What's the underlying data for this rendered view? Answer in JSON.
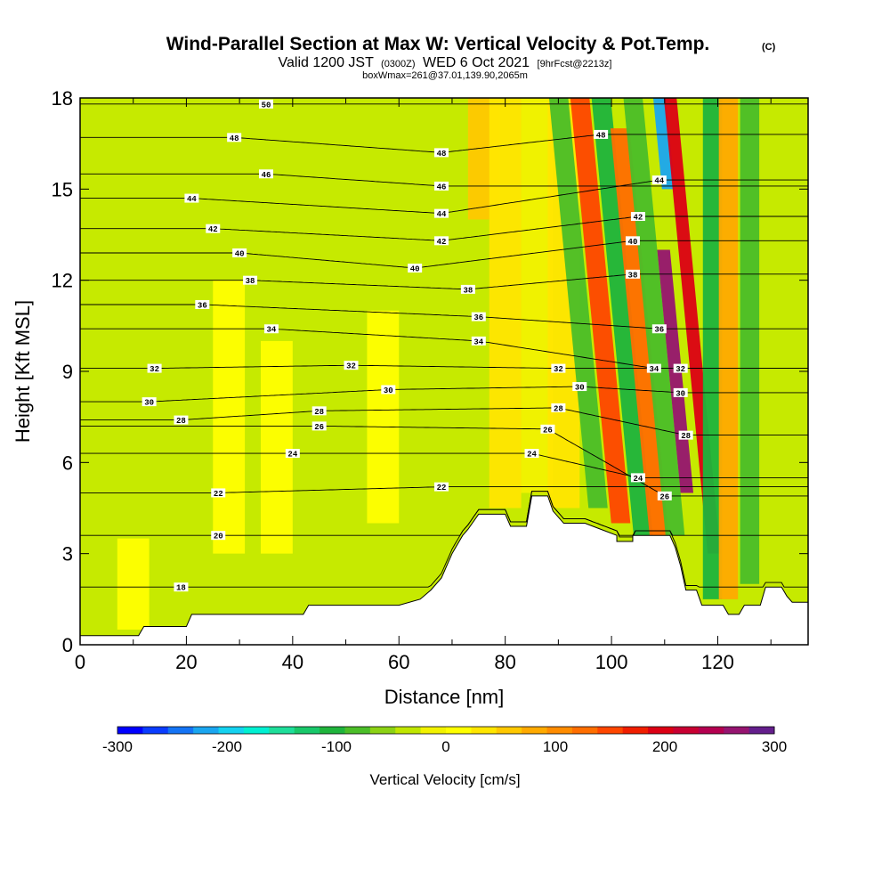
{
  "header": {
    "title": "Wind-Parallel Section at Max W: Vertical Velocity & Pot.Temp.",
    "copyright": "(C)",
    "valid_prefix": "Valid 1200 JST",
    "valid_zulu": "(0300Z)",
    "valid_date": "WED 6 Oct 2021",
    "forecast": "[9hrFcst@2213z]",
    "box_info": "boxWmax=261@37.01,139.90,2065m"
  },
  "chart_data": {
    "type": "heatmap",
    "xlabel": "Distance [nm]",
    "ylabel": "Height [Kft MSL]",
    "xlim": [
      0,
      137
    ],
    "ylim": [
      0,
      18
    ],
    "x_ticks": [
      0,
      20,
      40,
      60,
      80,
      100,
      120
    ],
    "y_ticks": [
      0,
      3,
      6,
      9,
      12,
      15,
      18
    ],
    "grid": false,
    "terrain_kft": [
      [
        0,
        0.3
      ],
      [
        11,
        0.3
      ],
      [
        12,
        0.6
      ],
      [
        20,
        0.6
      ],
      [
        21,
        1.0
      ],
      [
        42,
        1.0
      ],
      [
        43,
        1.3
      ],
      [
        60,
        1.3
      ],
      [
        64,
        1.5
      ],
      [
        66,
        1.8
      ],
      [
        68,
        2.2
      ],
      [
        69,
        2.6
      ],
      [
        70,
        3.0
      ],
      [
        71,
        3.3
      ],
      [
        72,
        3.6
      ],
      [
        73,
        3.8
      ],
      [
        75,
        4.3
      ],
      [
        80,
        4.3
      ],
      [
        81,
        3.9
      ],
      [
        84,
        3.9
      ],
      [
        85,
        4.9
      ],
      [
        88,
        4.9
      ],
      [
        89,
        4.4
      ],
      [
        91,
        4.0
      ],
      [
        95,
        4.0
      ],
      [
        98,
        3.8
      ],
      [
        101,
        3.6
      ],
      [
        101,
        3.4
      ],
      [
        104,
        3.4
      ],
      [
        104,
        3.6
      ],
      [
        111,
        3.6
      ],
      [
        112,
        3.2
      ],
      [
        113,
        2.6
      ],
      [
        114,
        1.8
      ],
      [
        116,
        1.8
      ],
      [
        117,
        1.3
      ],
      [
        121,
        1.3
      ],
      [
        122,
        1.0
      ],
      [
        124,
        1.0
      ],
      [
        125,
        1.3
      ],
      [
        128,
        1.3
      ],
      [
        129,
        1.9
      ],
      [
        132,
        1.9
      ],
      [
        133,
        1.6
      ],
      [
        134,
        1.4
      ],
      [
        137,
        1.4
      ]
    ],
    "velocity_field_cm_s": [
      {
        "x": 10,
        "z_range": [
          0.5,
          3.5
        ],
        "w": 10
      },
      {
        "x": 28,
        "z_range": [
          3,
          12
        ],
        "w": 15
      },
      {
        "x": 37,
        "z_range": [
          3,
          10
        ],
        "w": 20
      },
      {
        "x": 57,
        "z_range": [
          4,
          11
        ],
        "w": 10
      },
      {
        "x": 76,
        "z_range": [
          14,
          18
        ],
        "w": 60
      },
      {
        "x": 80,
        "z_range": [
          4.5,
          18
        ],
        "w": 35
      },
      {
        "x": 86,
        "z_range": [
          5,
          18
        ],
        "w": -20
      },
      {
        "x": 91,
        "z_range": [
          4.5,
          18
        ],
        "w": 40
      },
      {
        "x": 95,
        "z_range": [
          4.5,
          18
        ],
        "w": -80
      },
      {
        "x": 99,
        "z_range": [
          4,
          18
        ],
        "w": 150
      },
      {
        "x": 103,
        "z_range": [
          3.5,
          18
        ],
        "w": -110
      },
      {
        "x": 106,
        "z_range": [
          3.6,
          17
        ],
        "w": 120
      },
      {
        "x": 109,
        "z_range": [
          3.6,
          18
        ],
        "w": -90
      },
      {
        "x": 112,
        "z_range": [
          5,
          13
        ],
        "w": 261
      },
      {
        "x": 114,
        "z_range": [
          15,
          18
        ],
        "w": -230
      },
      {
        "x": 116,
        "z_range": [
          3,
          18
        ],
        "w": 200
      },
      {
        "x": 119,
        "z_range": [
          1.5,
          18
        ],
        "w": -100
      },
      {
        "x": 122,
        "z_range": [
          1.5,
          18
        ],
        "w": 90
      },
      {
        "x": 126,
        "z_range": [
          2,
          18
        ],
        "w": -70
      }
    ],
    "potential_temperature_labels": [
      {
        "text": "50",
        "x": 35,
        "z": 17.8
      },
      {
        "text": "48",
        "x": 29,
        "z": 16.7
      },
      {
        "text": "48",
        "x": 68,
        "z": 16.2
      },
      {
        "text": "48",
        "x": 98,
        "z": 16.8
      },
      {
        "text": "46",
        "x": 35,
        "z": 15.5
      },
      {
        "text": "46",
        "x": 68,
        "z": 15.1
      },
      {
        "text": "44",
        "x": 21,
        "z": 14.7
      },
      {
        "text": "44",
        "x": 68,
        "z": 14.2
      },
      {
        "text": "44",
        "x": 109,
        "z": 15.3
      },
      {
        "text": "42",
        "x": 25,
        "z": 13.7
      },
      {
        "text": "42",
        "x": 68,
        "z": 13.3
      },
      {
        "text": "42",
        "x": 105,
        "z": 14.1
      },
      {
        "text": "40",
        "x": 30,
        "z": 12.9
      },
      {
        "text": "40",
        "x": 63,
        "z": 12.4
      },
      {
        "text": "40",
        "x": 104,
        "z": 13.3
      },
      {
        "text": "38",
        "x": 32,
        "z": 12.0
      },
      {
        "text": "38",
        "x": 73,
        "z": 11.7
      },
      {
        "text": "38",
        "x": 104,
        "z": 12.2
      },
      {
        "text": "36",
        "x": 23,
        "z": 11.2
      },
      {
        "text": "36",
        "x": 75,
        "z": 10.8
      },
      {
        "text": "36",
        "x": 109,
        "z": 10.4
      },
      {
        "text": "34",
        "x": 36,
        "z": 10.4
      },
      {
        "text": "34",
        "x": 75,
        "z": 10.0
      },
      {
        "text": "34",
        "x": 108,
        "z": 9.1
      },
      {
        "text": "32",
        "x": 14,
        "z": 9.1
      },
      {
        "text": "32",
        "x": 51,
        "z": 9.2
      },
      {
        "text": "32",
        "x": 90,
        "z": 9.1
      },
      {
        "text": "32",
        "x": 113,
        "z": 9.1
      },
      {
        "text": "30",
        "x": 13,
        "z": 8.0
      },
      {
        "text": "30",
        "x": 58,
        "z": 8.4
      },
      {
        "text": "30",
        "x": 94,
        "z": 8.5
      },
      {
        "text": "30",
        "x": 113,
        "z": 8.3
      },
      {
        "text": "28",
        "x": 19,
        "z": 7.4
      },
      {
        "text": "28",
        "x": 45,
        "z": 7.7
      },
      {
        "text": "28",
        "x": 90,
        "z": 7.8
      },
      {
        "text": "28",
        "x": 114,
        "z": 6.9
      },
      {
        "text": "26",
        "x": 45,
        "z": 7.2
      },
      {
        "text": "26",
        "x": 88,
        "z": 7.1
      },
      {
        "text": "26",
        "x": 110,
        "z": 4.9
      },
      {
        "text": "24",
        "x": 40,
        "z": 6.3
      },
      {
        "text": "24",
        "x": 85,
        "z": 6.3
      },
      {
        "text": "24",
        "x": 105,
        "z": 5.5
      },
      {
        "text": "22",
        "x": 26,
        "z": 5.0
      },
      {
        "text": "22",
        "x": 68,
        "z": 5.2
      },
      {
        "text": "20",
        "x": 26,
        "z": 3.6
      },
      {
        "text": "18",
        "x": 19,
        "z": 1.9
      }
    ],
    "colorbar": {
      "label": "Vertical Velocity [cm/s]",
      "ticks": [
        -300,
        -200,
        -100,
        0,
        100,
        200,
        300
      ],
      "tick_labels": [
        "-300",
        "-200",
        "-100",
        "0",
        "100",
        "200",
        "300"
      ],
      "colors": [
        "#0000ff",
        "#0a3cff",
        "#1474f5",
        "#1aa6f0",
        "#14d2f0",
        "#00f0d2",
        "#1ede9a",
        "#18c86a",
        "#1fb43c",
        "#4bbe28",
        "#8cd214",
        "#c0e600",
        "#f2f200",
        "#ffff00",
        "#ffe600",
        "#ffc800",
        "#ffaa00",
        "#ff8c00",
        "#ff6e00",
        "#ff4600",
        "#f01e00",
        "#dc0014",
        "#c80032",
        "#b40050",
        "#961470",
        "#641e8c"
      ]
    }
  }
}
